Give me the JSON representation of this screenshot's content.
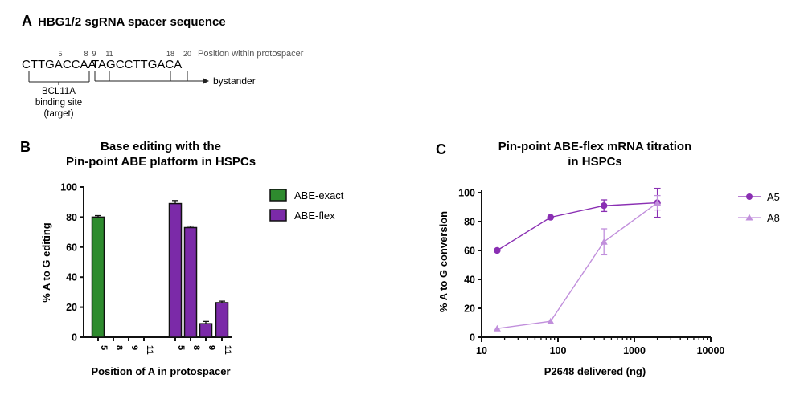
{
  "panel_a": {
    "label": "A",
    "title": "HBG1/2 sgRNA spacer sequence",
    "sequence_left": "CTTGACCAA",
    "sequence_right": "TAGCCTTGACA",
    "position_numbers": [
      "5",
      "8",
      "9",
      "11",
      "18",
      "20"
    ],
    "position_caption": "Position within protospacer",
    "bystander_label": "bystander",
    "target_label_lines": [
      "BCL11A",
      "binding site",
      "(target)"
    ]
  },
  "colors": {
    "exact": "#2e8b2e",
    "flex": "#7b2aa8",
    "a5": "#8a2fb3",
    "a8": "#c18fdc"
  },
  "chart_data": [
    {
      "type": "bar",
      "panel": "B",
      "title": "Base editing with the",
      "title_line2": "Pin-point ABE platform in HSPCs",
      "xlabel": "Position of A in protospacer",
      "ylabel": "% A to G editing",
      "ylim": [
        0,
        100
      ],
      "yticks": [
        "0",
        "20",
        "40",
        "60",
        "80",
        "100"
      ],
      "categories": [
        "5",
        "8",
        "9",
        "11"
      ],
      "series": [
        {
          "name": "ABE-exact",
          "values": [
            80,
            0,
            0,
            0
          ],
          "errors": [
            1,
            0,
            0,
            0
          ]
        },
        {
          "name": "ABE-flex",
          "values": [
            89,
            73,
            9,
            23
          ],
          "errors": [
            2,
            1,
            1.5,
            1
          ]
        }
      ]
    },
    {
      "type": "line",
      "panel": "C",
      "title": "Pin-point ABE-flex mRNA titration",
      "title_line2": "in HSPCs",
      "xlabel": "P2648 delivered (ng)",
      "ylabel": "% A to G conversion",
      "xscale": "log",
      "xlim": [
        10,
        10000
      ],
      "ylim": [
        0,
        100
      ],
      "xticks": [
        "10",
        "100",
        "1000",
        "10000"
      ],
      "yticks": [
        "0",
        "20",
        "40",
        "60",
        "80",
        "100"
      ],
      "series": [
        {
          "name": "A5",
          "marker": "circle",
          "x": [
            16,
            80,
            400,
            2000
          ],
          "y": [
            60,
            83,
            91,
            93
          ],
          "errors": [
            0,
            0,
            4,
            10
          ]
        },
        {
          "name": "A8",
          "marker": "triangle",
          "x": [
            16,
            80,
            400,
            2000
          ],
          "y": [
            6,
            11,
            66,
            93
          ],
          "errors": [
            0,
            0,
            9,
            5
          ]
        }
      ]
    }
  ]
}
